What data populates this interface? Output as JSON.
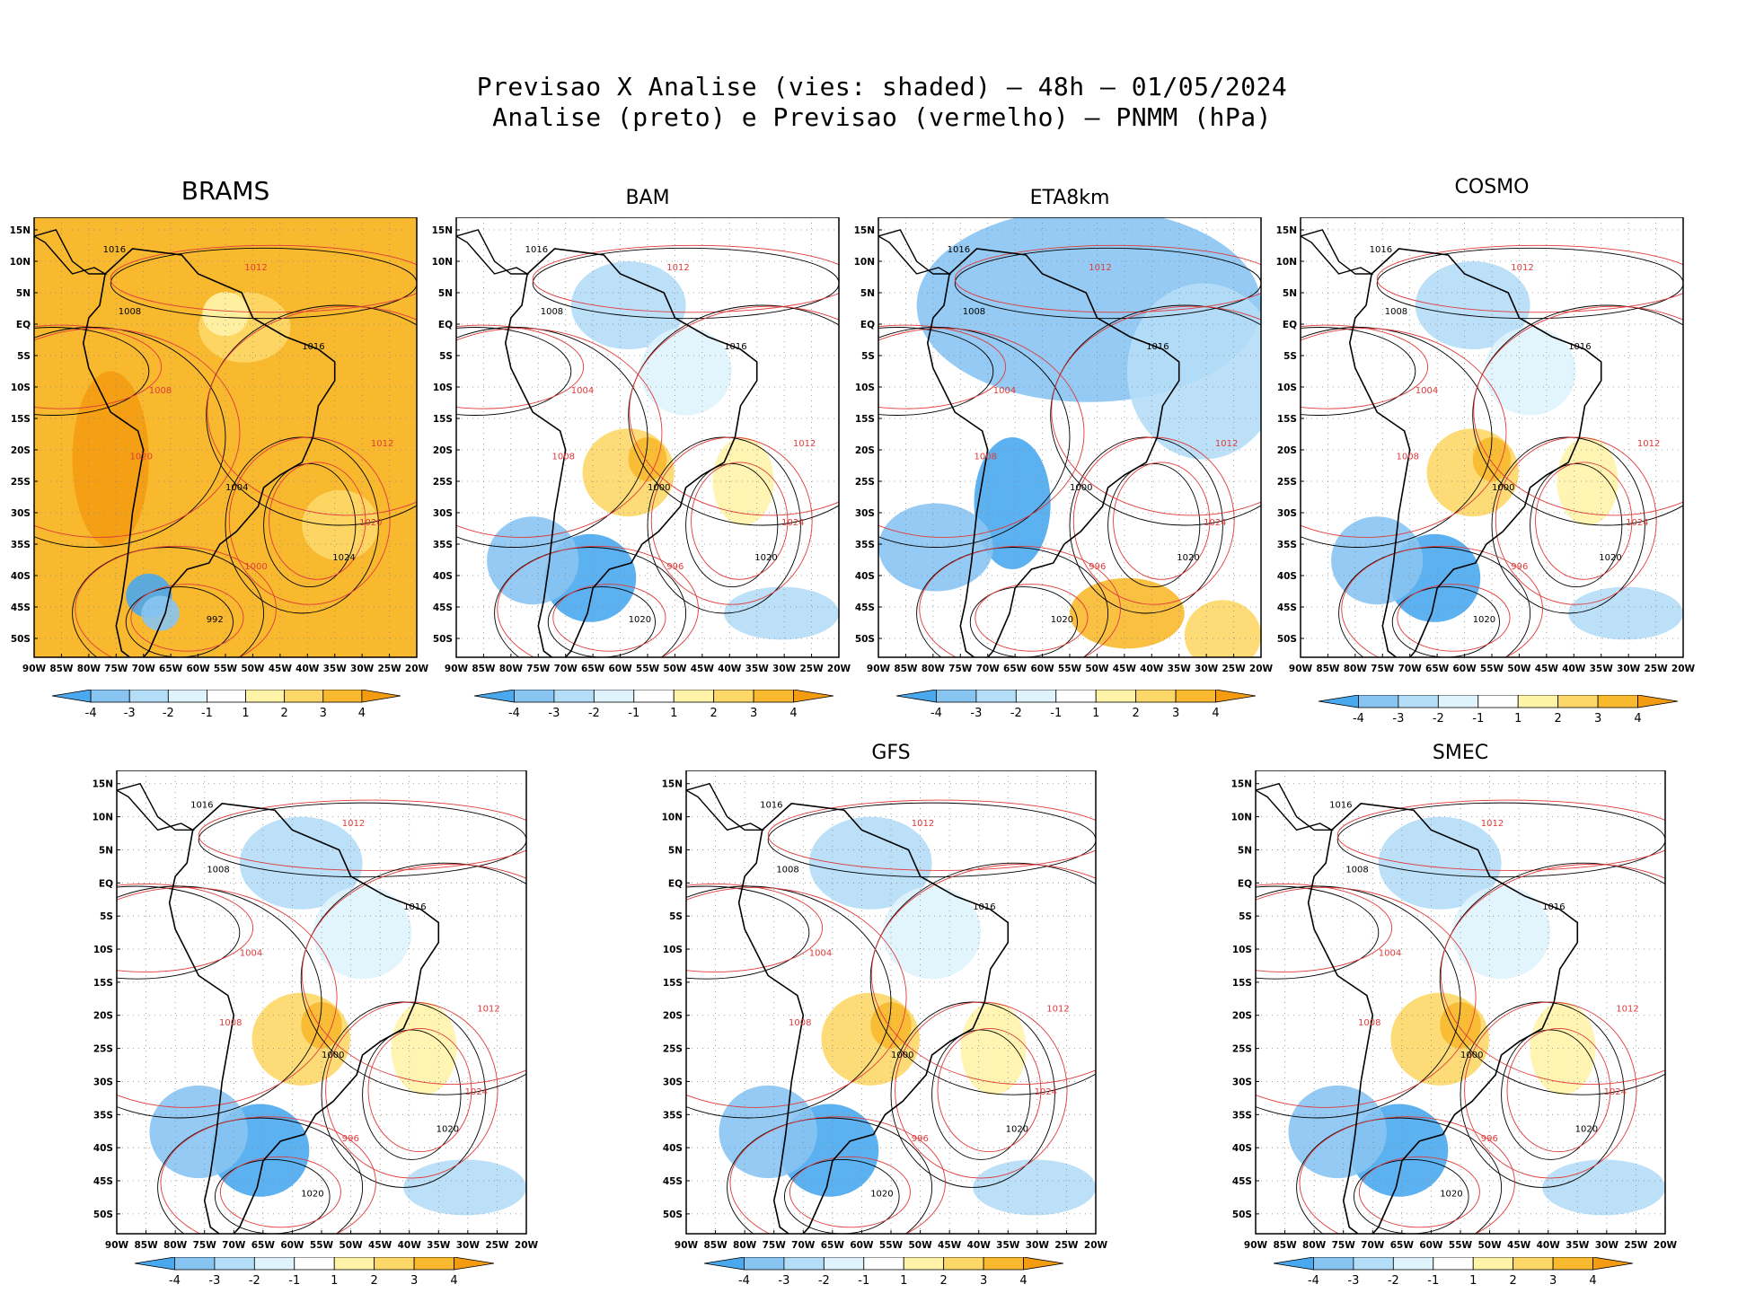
{
  "title": {
    "line1": "Previsao X Analise (vies: shaded) – 48h – 01/05/2024",
    "line2": "Analise (preto) e Previsao (vermelho) – PNMM (hPa)"
  },
  "axes": {
    "lat_labels": [
      "15N",
      "10N",
      "5N",
      "EQ",
      "5S",
      "10S",
      "15S",
      "20S",
      "25S",
      "30S",
      "35S",
      "40S",
      "45S",
      "50S"
    ],
    "lon_labels": [
      "90W",
      "85W",
      "80W",
      "75W",
      "70W",
      "65W",
      "60W",
      "55W",
      "50W",
      "45W",
      "40W",
      "35W",
      "30W",
      "25W",
      "20W"
    ]
  },
  "colorbar": {
    "labels": [
      "-4",
      "-3",
      "-2",
      "-1",
      "1",
      "2",
      "3",
      "4"
    ],
    "colors": [
      "#4aa8ee",
      "#88c4f2",
      "#b4ddf7",
      "#dff3fc",
      "#ffffff",
      "#fff3a8",
      "#fdd868",
      "#f8b92e",
      "#f39c12"
    ]
  },
  "legend": {
    "analysis_color": "#000000",
    "forecast_color": "#e03a3a"
  },
  "panels": [
    {
      "id": "brams",
      "title": "BRAMS",
      "isobars": [
        "1016",
        "1012",
        "1008",
        "1008",
        "1004",
        "1000",
        "992",
        "1020",
        "1024",
        "1012",
        "1016",
        "1020"
      ]
    },
    {
      "id": "bam",
      "title": "BAM",
      "isobars": [
        "1016",
        "1012",
        "1008",
        "1004",
        "1000",
        "996",
        "1020",
        "1024",
        "1020",
        "1012",
        "1016",
        "1008"
      ]
    },
    {
      "id": "eta8km",
      "title": "ETA8km",
      "isobars": [
        "1016",
        "1012",
        "1008",
        "1004",
        "1000",
        "996",
        "1020",
        "1024",
        "1020",
        "1012",
        "1016",
        "1008"
      ]
    },
    {
      "id": "cosmo",
      "title": "COSMO",
      "isobars": [
        "1016",
        "1012",
        "1008",
        "1004",
        "1000",
        "996",
        "1020",
        "1024",
        "1020",
        "1012",
        "1016",
        "1008"
      ]
    },
    {
      "id": "unnamed",
      "title": "",
      "isobars": [
        "1016",
        "1012",
        "1008",
        "1004",
        "1000",
        "996",
        "1020",
        "1024",
        "1020",
        "1012",
        "1016",
        "1008"
      ]
    },
    {
      "id": "gfs",
      "title": "GFS",
      "isobars": [
        "1016",
        "1012",
        "1008",
        "1004",
        "1000",
        "996",
        "1020",
        "1024",
        "1020",
        "1012",
        "1016",
        "1008"
      ]
    },
    {
      "id": "smec",
      "title": "SMEC",
      "isobars": [
        "1016",
        "1012",
        "1008",
        "1004",
        "1000",
        "996",
        "1020",
        "1024",
        "1020",
        "1012",
        "1016",
        "1008"
      ]
    }
  ]
}
